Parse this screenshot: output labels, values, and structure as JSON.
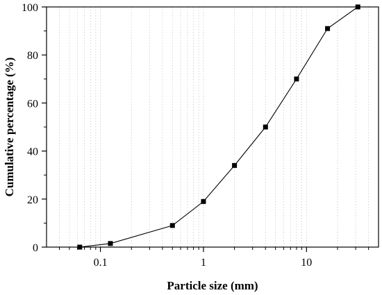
{
  "chart_data": {
    "type": "line",
    "title": "",
    "xlabel": "Particle size (mm)",
    "ylabel": "Cumulative percentage (%)",
    "x_scale": "log",
    "xlim": [
      0.03,
      50
    ],
    "ylim": [
      0,
      100
    ],
    "x_ticks": [
      0.1,
      1,
      10
    ],
    "x_tick_labels": [
      "0.1",
      "1",
      "10"
    ],
    "y_ticks": [
      0,
      20,
      40,
      60,
      80,
      100
    ],
    "y_tick_labels": [
      "0",
      "20",
      "40",
      "60",
      "80",
      "100"
    ],
    "grid": "vertical dotted lines at minor log ticks",
    "marker": "square",
    "series": [
      {
        "x": [
          0.063,
          0.125,
          0.5,
          1,
          2,
          4,
          8,
          16,
          31.5
        ],
        "y": [
          0,
          1.5,
          9,
          19,
          34,
          50,
          70,
          91,
          100
        ],
        "color": "#000000"
      }
    ]
  }
}
